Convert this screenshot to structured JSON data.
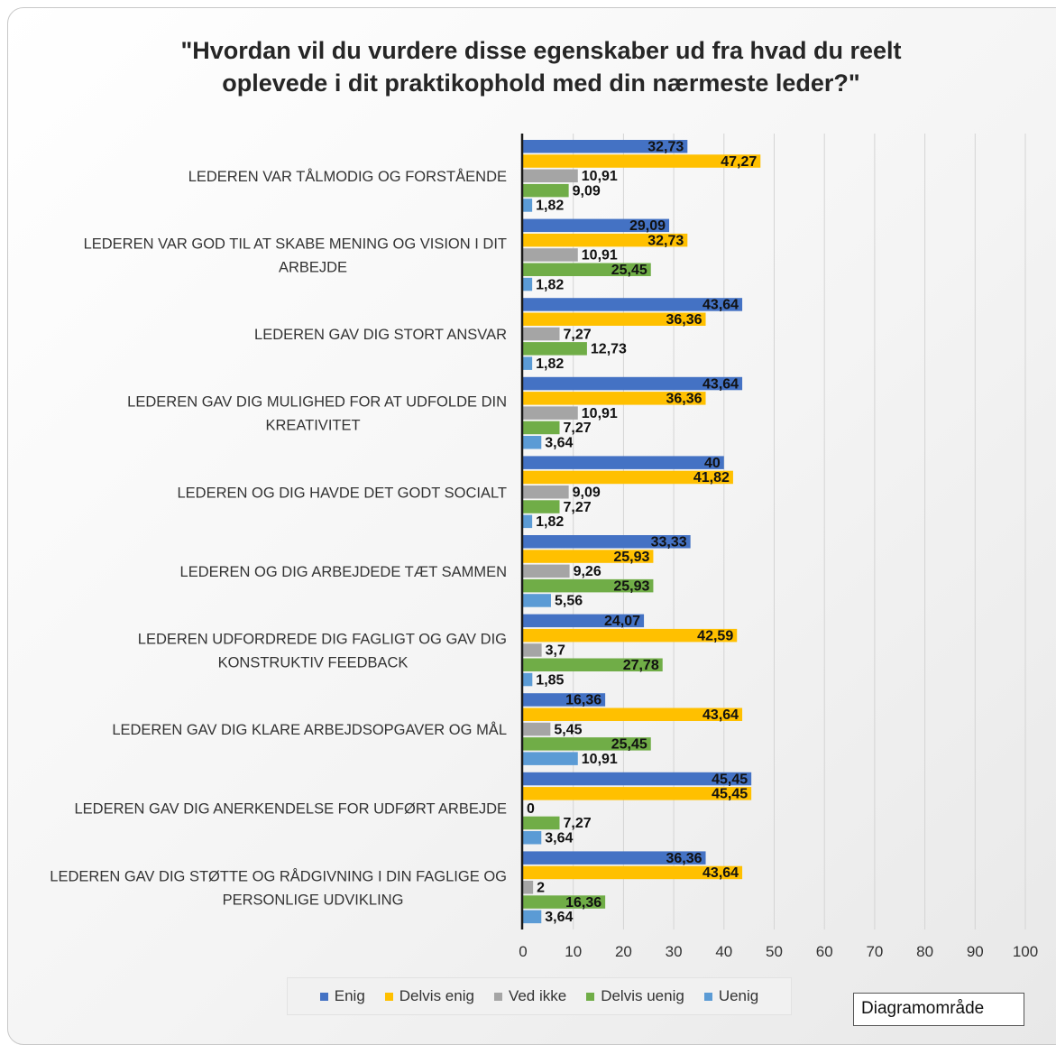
{
  "tooltip": "Diagramområde",
  "chart_data": {
    "type": "bar",
    "orientation": "horizontal",
    "title": "\"Hvordan vil du vurdere disse egenskaber ud fra hvad du reelt oplevede i dit praktikophold med din nærmeste leder?\"",
    "title_lines": [
      "\"Hvordan  vil du vurdere disse egenskaber ud fra hvad du reelt",
      "oplevede i dit praktikophold  med din nærmeste leder?\""
    ],
    "xlim": [
      0,
      100
    ],
    "ticks": [
      0,
      10,
      20,
      30,
      40,
      50,
      60,
      70,
      80,
      90,
      100
    ],
    "grid": true,
    "legend_position": "bottom",
    "categories": [
      [
        "LEDEREN VAR TÅLMODIG OG FORSTÅENDE"
      ],
      [
        "LEDEREN VAR GOD TIL AT SKABE MENING OG VISION I DIT",
        "ARBEJDE"
      ],
      [
        "LEDEREN GAV DIG STORT ANSVAR"
      ],
      [
        "LEDEREN GAV DIG MULIGHED FOR AT UDFOLDE DIN",
        "KREATIVITET"
      ],
      [
        "LEDEREN OG DIG HAVDE DET GODT SOCIALT"
      ],
      [
        "LEDEREN OG DIG ARBEJDEDE TÆT SAMMEN"
      ],
      [
        "LEDEREN UDFORDREDE DIG FAGLIGT OG GAV DIG",
        "KONSTRUKTIV FEEDBACK"
      ],
      [
        "LEDEREN GAV DIG KLARE ARBEJDSOPGAVER OG MÅL"
      ],
      [
        "LEDEREN GAV DIG ANERKENDELSE FOR UDFØRT ARBEJDE"
      ],
      [
        "LEDEREN GAV DIG STØTTE OG RÅDGIVNING I DIN FAGLIGE OG",
        "PERSONLIGE UDVIKLING"
      ]
    ],
    "series": [
      {
        "name": "Enig",
        "color": "#4472c4",
        "values": [
          32.73,
          29.09,
          43.64,
          43.64,
          40,
          33.33,
          24.07,
          16.36,
          45.45,
          36.36
        ],
        "labels": [
          "32,73",
          "29,09",
          "43,64",
          "43,64",
          "40",
          "33,33",
          "24,07",
          "16,36",
          "45,45",
          "36,36"
        ]
      },
      {
        "name": "Delvis enig",
        "color": "#ffc000",
        "values": [
          47.27,
          32.73,
          36.36,
          36.36,
          41.82,
          25.93,
          42.59,
          43.64,
          45.45,
          43.64
        ],
        "labels": [
          "47,27",
          "32,73",
          "36,36",
          "36,36",
          "41,82",
          "25,93",
          "42,59",
          "43,64",
          "45,45",
          "43,64"
        ]
      },
      {
        "name": "Ved ikke",
        "color": "#a5a5a5",
        "values": [
          10.91,
          10.91,
          7.27,
          10.91,
          9.09,
          9.26,
          3.7,
          5.45,
          0,
          2
        ],
        "labels": [
          "10,91",
          "10,91",
          "7,27",
          "10,91",
          "9,09",
          "9,26",
          "3,7",
          "5,45",
          "0",
          "2"
        ]
      },
      {
        "name": "Delvis uenig",
        "color": "#70ad47",
        "values": [
          9.09,
          25.45,
          12.73,
          7.27,
          7.27,
          25.93,
          27.78,
          25.45,
          7.27,
          16.36
        ],
        "labels": [
          "9,09",
          "25,45",
          "12,73",
          "7,27",
          "7,27",
          "25,93",
          "27,78",
          "25,45",
          "7,27",
          "16,36"
        ]
      },
      {
        "name": "Uenig",
        "color": "#5b9bd5",
        "values": [
          1.82,
          1.82,
          1.82,
          3.64,
          1.82,
          5.56,
          1.85,
          10.91,
          3.64,
          3.64
        ],
        "labels": [
          "1,82",
          "1,82",
          "1,82",
          "3,64",
          "1,82",
          "5,56",
          "1,85",
          "10,91",
          "3,64",
          "3,64"
        ]
      }
    ]
  }
}
